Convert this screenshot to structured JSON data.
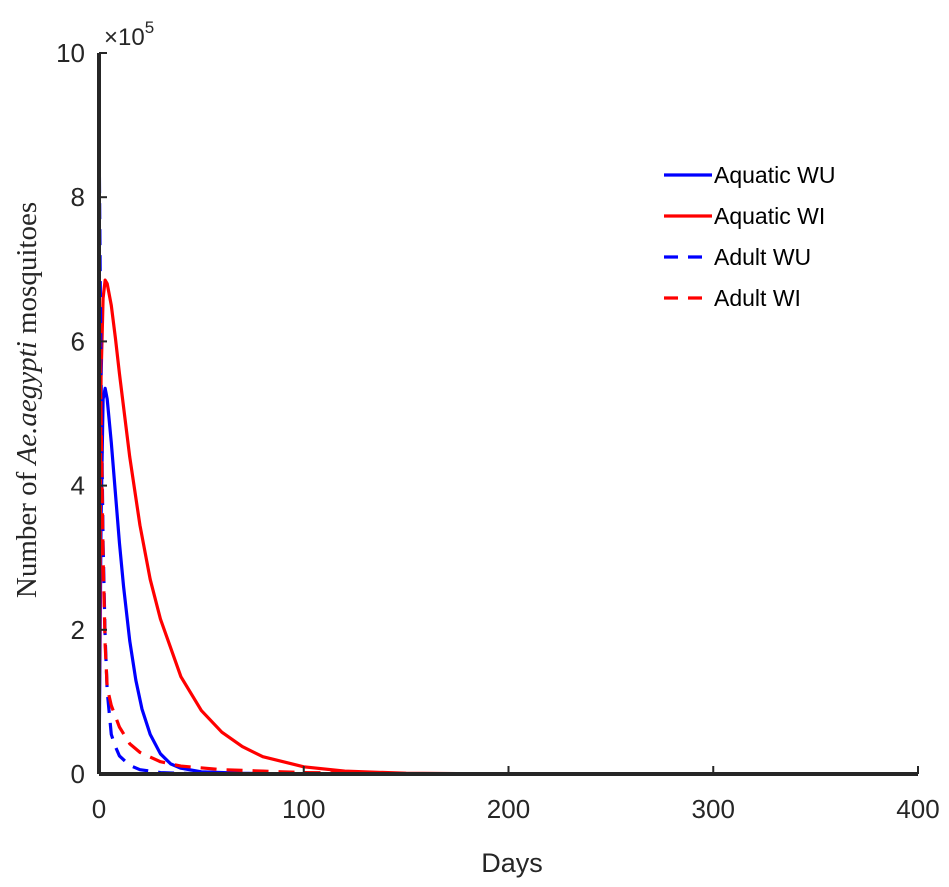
{
  "chart_data": {
    "type": "line",
    "xlabel": "Days",
    "ylabel": {
      "prefix": "Number of ",
      "species": "Ae.aegypti",
      "suffix": " mosquitoes"
    },
    "y_multiplier": "×10",
    "y_multiplier_exponent": "5",
    "xlim": [
      0,
      400
    ],
    "ylim": [
      0,
      10
    ],
    "xticks": [
      0,
      100,
      200,
      300,
      400
    ],
    "xtick_labels": [
      "0",
      "100",
      "200",
      "300",
      "400"
    ],
    "yticks": [
      0,
      2,
      4,
      6,
      8,
      10
    ],
    "ytick_labels": [
      "0",
      "2",
      "4",
      "6",
      "8",
      "10"
    ],
    "grid": false,
    "legend_position": "top-right",
    "series": [
      {
        "name": "Aquatic WU",
        "color": "#0000ff",
        "dash": "solid",
        "points": [
          [
            0,
            0
          ],
          [
            1,
            3.5
          ],
          [
            2,
            5.2
          ],
          [
            3,
            5.35
          ],
          [
            4,
            5.2
          ],
          [
            6,
            4.6
          ],
          [
            8,
            3.9
          ],
          [
            10,
            3.2
          ],
          [
            12,
            2.6
          ],
          [
            15,
            1.85
          ],
          [
            18,
            1.3
          ],
          [
            21,
            0.9
          ],
          [
            25,
            0.55
          ],
          [
            30,
            0.28
          ],
          [
            35,
            0.14
          ],
          [
            40,
            0.08
          ],
          [
            50,
            0.03
          ],
          [
            70,
            0.01
          ],
          [
            100,
            0.0
          ],
          [
            400,
            0.0
          ]
        ]
      },
      {
        "name": "Aquatic WI",
        "color": "#ff0000",
        "dash": "solid",
        "points": [
          [
            0,
            0
          ],
          [
            1,
            5.5
          ],
          [
            2,
            6.6
          ],
          [
            3,
            6.85
          ],
          [
            4,
            6.8
          ],
          [
            6,
            6.5
          ],
          [
            8,
            6.05
          ],
          [
            10,
            5.55
          ],
          [
            15,
            4.4
          ],
          [
            20,
            3.45
          ],
          [
            25,
            2.7
          ],
          [
            30,
            2.15
          ],
          [
            40,
            1.35
          ],
          [
            50,
            0.88
          ],
          [
            60,
            0.58
          ],
          [
            70,
            0.38
          ],
          [
            80,
            0.24
          ],
          [
            100,
            0.1
          ],
          [
            120,
            0.04
          ],
          [
            150,
            0.01
          ],
          [
            200,
            0.0
          ],
          [
            400,
            0.0
          ]
        ]
      },
      {
        "name": "Adult WU",
        "color": "#0000ff",
        "dash": "dashed",
        "points": [
          [
            0,
            9.0
          ],
          [
            1,
            5.5
          ],
          [
            2,
            3.2
          ],
          [
            3,
            1.9
          ],
          [
            4,
            1.15
          ],
          [
            6,
            0.55
          ],
          [
            8,
            0.38
          ],
          [
            10,
            0.25
          ],
          [
            15,
            0.12
          ],
          [
            20,
            0.06
          ],
          [
            30,
            0.02
          ],
          [
            40,
            0.01
          ],
          [
            60,
            0.0
          ],
          [
            400,
            0.0
          ]
        ]
      },
      {
        "name": "Adult WI",
        "color": "#ff0000",
        "dash": "dashed",
        "points": [
          [
            0,
            6.5
          ],
          [
            1,
            5.0
          ],
          [
            2,
            3.0
          ],
          [
            3,
            1.8
          ],
          [
            4,
            1.2
          ],
          [
            6,
            0.95
          ],
          [
            8,
            0.8
          ],
          [
            10,
            0.65
          ],
          [
            15,
            0.42
          ],
          [
            20,
            0.3
          ],
          [
            30,
            0.17
          ],
          [
            40,
            0.11
          ],
          [
            60,
            0.06
          ],
          [
            80,
            0.04
          ],
          [
            100,
            0.02
          ],
          [
            130,
            0.01
          ],
          [
            160,
            0.0
          ],
          [
            400,
            0.0
          ]
        ]
      }
    ]
  }
}
